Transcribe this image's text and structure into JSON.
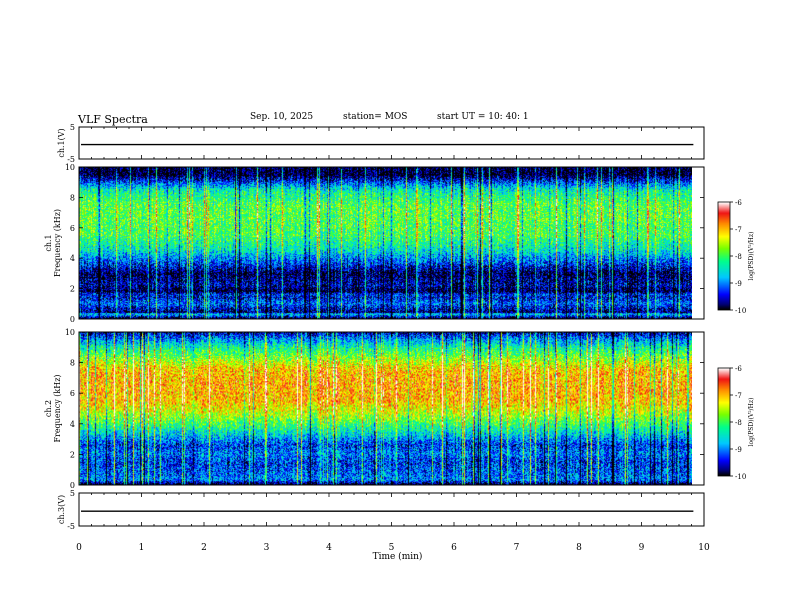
{
  "header": {
    "title": "VLF Spectra",
    "date": "Sep. 10, 2025",
    "station": "station= MOS",
    "start": "start  UT =   10: 40: 1"
  },
  "chart_data": {
    "type": "heatmap",
    "x_axis": {
      "label": "Time  (min)",
      "range": [
        0,
        10
      ],
      "ticks": [
        "0",
        "1",
        "2",
        "3",
        "4",
        "5",
        "6",
        "7",
        "8",
        "9",
        "10"
      ],
      "data_end_min": 9.83
    },
    "panels": [
      {
        "name": "ch.1 waveform",
        "type": "line",
        "ylabel": "ch.1(V)",
        "yrange": [
          -5,
          5
        ],
        "yticks": [
          "5",
          "-5"
        ],
        "level": -0.5
      },
      {
        "name": "ch.1 spectrogram",
        "type": "heatmap",
        "ylabel": "ch.1\nFrequency (kHz)",
        "yrange": [
          0,
          10
        ],
        "yticks": [
          "0",
          "2",
          "4",
          "6",
          "8",
          "10"
        ],
        "profile_khz_logpsd": [
          [
            0.0,
            -10
          ],
          [
            0.3,
            -8.6
          ],
          [
            0.4,
            -9.8
          ],
          [
            1.0,
            -9.1
          ],
          [
            1.4,
            -9.5
          ],
          [
            1.6,
            -9.3
          ],
          [
            1.8,
            -10
          ],
          [
            2.2,
            -9.6
          ],
          [
            3.0,
            -9.9
          ],
          [
            3.6,
            -9.3
          ],
          [
            4.5,
            -8.5
          ],
          [
            5.5,
            -8.0
          ],
          [
            6.5,
            -7.9
          ],
          [
            7.5,
            -7.9
          ],
          [
            8.5,
            -8.4
          ],
          [
            9.0,
            -9.2
          ],
          [
            9.5,
            -10
          ],
          [
            10.0,
            -10
          ]
        ]
      },
      {
        "name": "ch.2 spectrogram",
        "type": "heatmap",
        "ylabel": "ch.2\nFrequency (kHz)",
        "yrange": [
          0,
          10
        ],
        "yticks": [
          "0",
          "2",
          "4",
          "6",
          "8",
          "10"
        ],
        "profile_khz_logpsd": [
          [
            0.0,
            -10
          ],
          [
            0.3,
            -9.0
          ],
          [
            1.0,
            -9.2
          ],
          [
            1.5,
            -9.3
          ],
          [
            2.0,
            -9.0
          ],
          [
            2.6,
            -9.3
          ],
          [
            3.2,
            -8.7
          ],
          [
            4.0,
            -8.0
          ],
          [
            4.8,
            -7.4
          ],
          [
            5.5,
            -7.0
          ],
          [
            6.5,
            -6.9
          ],
          [
            7.5,
            -7.0
          ],
          [
            8.2,
            -7.6
          ],
          [
            9.0,
            -8.3
          ],
          [
            9.6,
            -9.0
          ],
          [
            10.0,
            -9.6
          ]
        ]
      },
      {
        "name": "ch.3 waveform",
        "type": "line",
        "ylabel": "ch.3(V)",
        "yrange": [
          -5,
          5
        ],
        "yticks": [
          "5",
          "-5"
        ],
        "level": -0.5
      }
    ],
    "colorbar": {
      "label": "log(PSD)(V²/Hz)",
      "range": [
        -10,
        -6
      ],
      "ticks": [
        "-6",
        "-7",
        "-8",
        "-9",
        "-10"
      ]
    }
  }
}
